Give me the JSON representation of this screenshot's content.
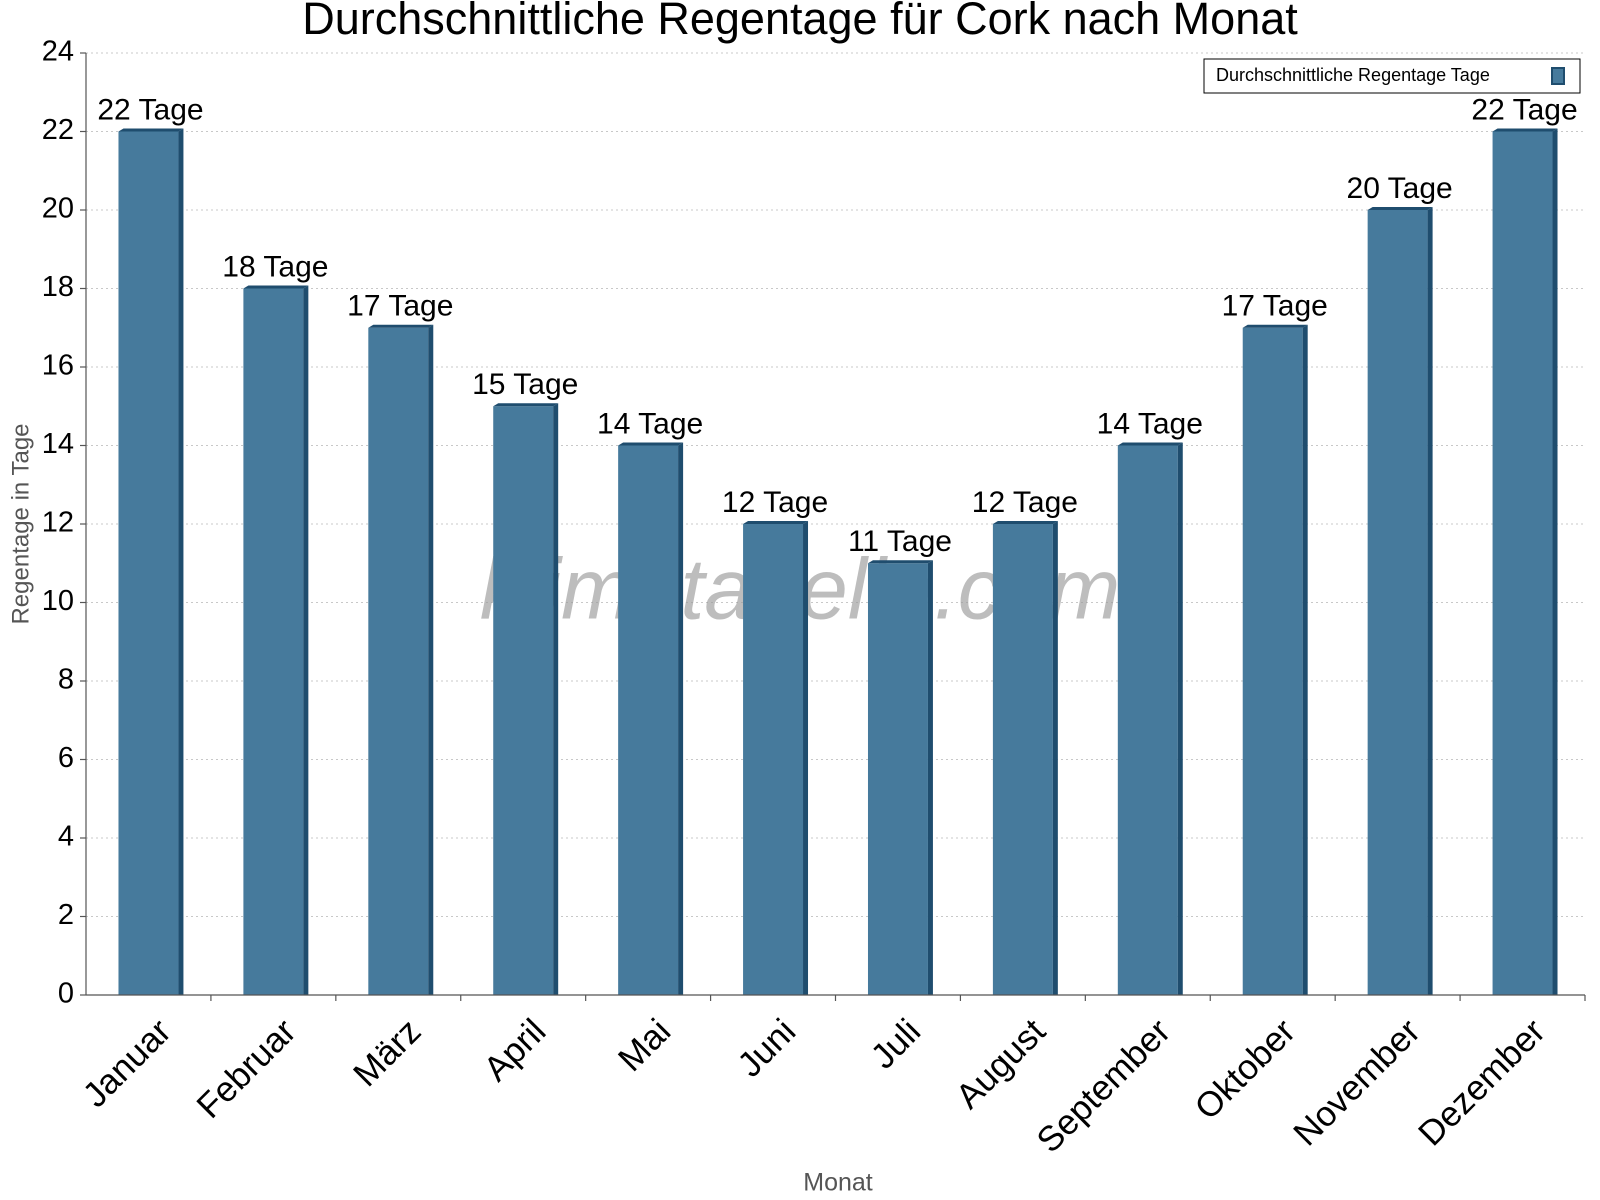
{
  "chart_data": {
    "type": "bar",
    "title": "Durchschnittliche Regentage für Cork nach Monat",
    "x_label": "Monat",
    "y_label": "Regentage in Tage",
    "watermark": "klimatabelle.com",
    "categories": [
      "Januar",
      "Februar",
      "März",
      "April",
      "Mai",
      "Juni",
      "Juli",
      "August",
      "September",
      "Oktober",
      "November",
      "Dezember"
    ],
    "series": [
      {
        "name": "Durchschnittliche Regentage Tage",
        "color": "#467a9c",
        "values": [
          22,
          18,
          17,
          15,
          14,
          12,
          11,
          12,
          14,
          17,
          20,
          22
        ],
        "value_labels": [
          "22 Tage",
          "18 Tage",
          "17 Tage",
          "15 Tage",
          "14 Tage",
          "12 Tage",
          "11 Tage",
          "12 Tage",
          "14 Tage",
          "17 Tage",
          "20 Tage",
          "22 Tage"
        ]
      }
    ],
    "ylim": [
      0,
      24
    ],
    "yticks": [
      0,
      2,
      4,
      6,
      8,
      10,
      12,
      14,
      16,
      18,
      20,
      22,
      24
    ],
    "grid": true,
    "legend": "top-right"
  }
}
